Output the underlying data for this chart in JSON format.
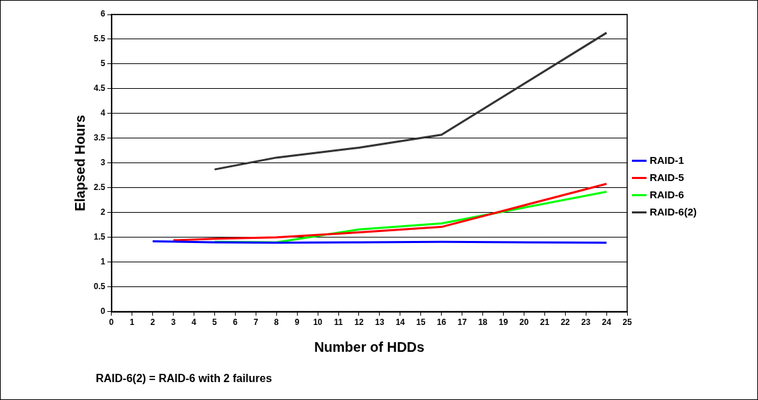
{
  "chart_data": {
    "type": "line",
    "xlabel": "Number of HDDs",
    "ylabel": "Elapsed Hours",
    "xlim": [
      0,
      25
    ],
    "xticks": [
      0,
      1,
      2,
      3,
      4,
      5,
      6,
      7,
      8,
      9,
      10,
      11,
      12,
      13,
      14,
      15,
      16,
      17,
      18,
      19,
      20,
      21,
      22,
      23,
      24,
      25
    ],
    "ylim": [
      0,
      6
    ],
    "yticks": [
      0,
      0.5,
      1,
      1.5,
      2,
      2.5,
      3,
      3.5,
      4,
      4.5,
      5,
      5.5,
      6
    ],
    "grid": "y",
    "legend": "right",
    "marker": "none",
    "line_style": "solid",
    "series": [
      {
        "name": "RAID-1",
        "color": "#0000ff",
        "x": [
          2,
          5,
          8,
          12,
          16,
          24
        ],
        "values": [
          1.42,
          1.4,
          1.39,
          1.4,
          1.41,
          1.39
        ]
      },
      {
        "name": "RAID-5",
        "color": "#ff0000",
        "x": [
          3,
          5,
          8,
          12,
          16,
          24
        ],
        "values": [
          1.44,
          1.47,
          1.5,
          1.6,
          1.71,
          2.58
        ]
      },
      {
        "name": "RAID-6",
        "color": "#00ff00",
        "x": [
          5,
          8,
          12,
          16,
          24
        ],
        "values": [
          1.41,
          1.4,
          1.66,
          1.78,
          2.42
        ]
      },
      {
        "name": "RAID-6(2)",
        "color": "#333333",
        "x": [
          5,
          8,
          12,
          16,
          24
        ],
        "values": [
          2.87,
          3.11,
          3.31,
          3.57,
          5.63
        ]
      }
    ],
    "annotations": [
      "RAID-6(2) = RAID-6 with 2 failures"
    ]
  }
}
